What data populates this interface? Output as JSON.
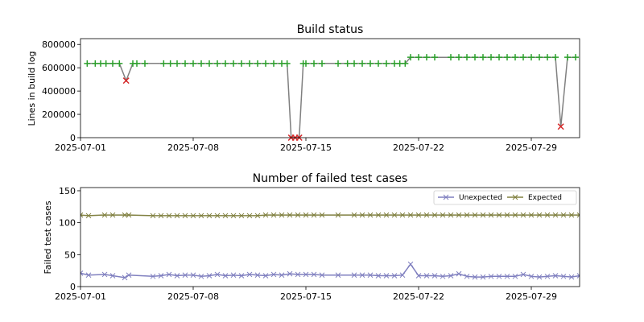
{
  "chart_data": [
    {
      "type": "line",
      "title": "Build status",
      "xlabel": "",
      "ylabel": "Lines in build log",
      "xlim": [
        "2025-07-01",
        "2025-08-01"
      ],
      "ylim": [
        0,
        850000
      ],
      "xticks": [
        "2025-07-01",
        "2025-07-08",
        "2025-07-15",
        "2025-07-22",
        "2025-07-29"
      ],
      "yticks": [
        0,
        200000,
        400000,
        600000,
        800000
      ],
      "ytick_labels": [
        "0",
        "200000",
        "400000",
        "600000",
        "800000"
      ],
      "grid": false,
      "colors": {
        "line": "#808080",
        "pass": "#2ca02c",
        "fail": "#d62728"
      },
      "series": [
        {
          "x": [
            "2025-07-01T10:00",
            "2025-07-01T22:00",
            "2025-07-02T06:00",
            "2025-07-02T14:00",
            "2025-07-03T00:00",
            "2025-07-03T10:00",
            "2025-07-03T20:00",
            "2025-07-04T06:00",
            "2025-07-04T12:00",
            "2025-07-05T00:00",
            "2025-07-06T04:00",
            "2025-07-06T14:00",
            "2025-07-07T00:00",
            "2025-07-07T12:00",
            "2025-07-08T00:00",
            "2025-07-08T12:00",
            "2025-07-09T00:00",
            "2025-07-09T12:00",
            "2025-07-10T00:00",
            "2025-07-10T12:00",
            "2025-07-11T00:00",
            "2025-07-11T12:00",
            "2025-07-12T00:00",
            "2025-07-12T12:00",
            "2025-07-13T00:00",
            "2025-07-13T12:00",
            "2025-07-13T20:00",
            "2025-07-14T02:00",
            "2025-07-14T08:00",
            "2025-07-14T14:00",
            "2025-07-14T20:00",
            "2025-07-15T00:00",
            "2025-07-15T12:00",
            "2025-07-16T00:00",
            "2025-07-17T00:00",
            "2025-07-17T14:00",
            "2025-07-18T00:00",
            "2025-07-18T12:00",
            "2025-07-19T00:00",
            "2025-07-19T12:00",
            "2025-07-20T00:00",
            "2025-07-20T12:00",
            "2025-07-20T20:00",
            "2025-07-21T04:00",
            "2025-07-21T12:00",
            "2025-07-22T00:00",
            "2025-07-22T12:00",
            "2025-07-23T00:00",
            "2025-07-24T00:00",
            "2025-07-24T12:00",
            "2025-07-25T00:00",
            "2025-07-25T12:00",
            "2025-07-26T00:00",
            "2025-07-26T12:00",
            "2025-07-27T00:00",
            "2025-07-27T12:00",
            "2025-07-28T00:00",
            "2025-07-28T12:00",
            "2025-07-29T00:00",
            "2025-07-29T12:00",
            "2025-07-30T00:00",
            "2025-07-30T12:00",
            "2025-07-30T20:00",
            "2025-07-31T06:00",
            "2025-07-31T18:00"
          ],
          "y": [
            637000,
            637000,
            637000,
            637000,
            637000,
            637000,
            490000,
            637000,
            637000,
            637000,
            637000,
            637000,
            637000,
            637000,
            637000,
            637000,
            637000,
            637000,
            637000,
            637000,
            637000,
            637000,
            637000,
            637000,
            637000,
            637000,
            637000,
            0,
            0,
            0,
            637000,
            637000,
            637000,
            637000,
            637000,
            637000,
            637000,
            637000,
            637000,
            637000,
            637000,
            637000,
            637000,
            637000,
            690000,
            690000,
            690000,
            690000,
            690000,
            690000,
            690000,
            690000,
            690000,
            690000,
            690000,
            690000,
            690000,
            690000,
            690000,
            690000,
            690000,
            690000,
            95000,
            690000,
            690000
          ],
          "status": [
            "pass",
            "pass",
            "pass",
            "pass",
            "pass",
            "pass",
            "fail",
            "pass",
            "pass",
            "pass",
            "pass",
            "pass",
            "pass",
            "pass",
            "pass",
            "pass",
            "pass",
            "pass",
            "pass",
            "pass",
            "pass",
            "pass",
            "pass",
            "pass",
            "pass",
            "pass",
            "pass",
            "fail",
            "fail",
            "fail",
            "pass",
            "pass",
            "pass",
            "pass",
            "pass",
            "pass",
            "pass",
            "pass",
            "pass",
            "pass",
            "pass",
            "pass",
            "pass",
            "pass",
            "pass",
            "pass",
            "pass",
            "pass",
            "pass",
            "pass",
            "pass",
            "pass",
            "pass",
            "pass",
            "pass",
            "pass",
            "pass",
            "pass",
            "pass",
            "pass",
            "pass",
            "pass",
            "fail",
            "pass",
            "pass"
          ]
        }
      ]
    },
    {
      "type": "line",
      "title": "Number of failed test cases",
      "xlabel": "",
      "ylabel": "Failed test cases",
      "xlim": [
        "2025-07-01",
        "2025-08-01"
      ],
      "ylim": [
        0,
        155
      ],
      "xticks": [
        "2025-07-01",
        "2025-07-08",
        "2025-07-15",
        "2025-07-22",
        "2025-07-29"
      ],
      "yticks": [
        0,
        50,
        100,
        150
      ],
      "ytick_labels": [
        "0",
        "50",
        "100",
        "150"
      ],
      "grid": false,
      "legend": "top-right",
      "series": [
        {
          "name": "Unexpected",
          "color": "#7f7fbf",
          "x": [
            "2025-07-01T00:00",
            "2025-07-01T12:00",
            "2025-07-02T12:00",
            "2025-07-03T00:00",
            "2025-07-03T18:00",
            "2025-07-04T00:00",
            "2025-07-05T12:00",
            "2025-07-06T00:00",
            "2025-07-06T12:00",
            "2025-07-07T00:00",
            "2025-07-07T12:00",
            "2025-07-08T00:00",
            "2025-07-08T12:00",
            "2025-07-09T00:00",
            "2025-07-09T12:00",
            "2025-07-10T00:00",
            "2025-07-10T12:00",
            "2025-07-11T00:00",
            "2025-07-11T12:00",
            "2025-07-12T00:00",
            "2025-07-12T12:00",
            "2025-07-13T00:00",
            "2025-07-13T12:00",
            "2025-07-14T00:00",
            "2025-07-14T12:00",
            "2025-07-15T00:00",
            "2025-07-15T12:00",
            "2025-07-16T00:00",
            "2025-07-17T00:00",
            "2025-07-18T00:00",
            "2025-07-18T12:00",
            "2025-07-19T00:00",
            "2025-07-19T12:00",
            "2025-07-20T00:00",
            "2025-07-20T12:00",
            "2025-07-21T00:00",
            "2025-07-21T12:00",
            "2025-07-22T00:00",
            "2025-07-22T12:00",
            "2025-07-23T00:00",
            "2025-07-23T12:00",
            "2025-07-24T00:00",
            "2025-07-24T12:00",
            "2025-07-25T00:00",
            "2025-07-25T12:00",
            "2025-07-26T00:00",
            "2025-07-26T12:00",
            "2025-07-27T00:00",
            "2025-07-27T12:00",
            "2025-07-28T00:00",
            "2025-07-28T12:00",
            "2025-07-29T00:00",
            "2025-07-29T12:00",
            "2025-07-30T00:00",
            "2025-07-30T12:00",
            "2025-07-31T00:00",
            "2025-07-31T12:00",
            "2025-08-01T00:00"
          ],
          "y": [
            21,
            18,
            19,
            17,
            14,
            18,
            16,
            17,
            19,
            17,
            18,
            18,
            16,
            17,
            19,
            17,
            18,
            17,
            19,
            18,
            17,
            19,
            18,
            20,
            19,
            19,
            19,
            18,
            18,
            18,
            18,
            18,
            17,
            17,
            17,
            18,
            35,
            17,
            17,
            17,
            16,
            17,
            20,
            16,
            15,
            15,
            16,
            16,
            16,
            16,
            19,
            16,
            15,
            16,
            17,
            16,
            15,
            17
          ],
          "marker": "x"
        },
        {
          "name": "Expected",
          "color": "#808040",
          "x": [
            "2025-07-01T00:00",
            "2025-07-01T12:00",
            "2025-07-02T12:00",
            "2025-07-03T00:00",
            "2025-07-03T18:00",
            "2025-07-04T00:00",
            "2025-07-05T12:00",
            "2025-07-06T00:00",
            "2025-07-06T12:00",
            "2025-07-07T00:00",
            "2025-07-07T12:00",
            "2025-07-08T00:00",
            "2025-07-08T12:00",
            "2025-07-09T00:00",
            "2025-07-09T12:00",
            "2025-07-10T00:00",
            "2025-07-10T12:00",
            "2025-07-11T00:00",
            "2025-07-11T12:00",
            "2025-07-12T00:00",
            "2025-07-12T12:00",
            "2025-07-13T00:00",
            "2025-07-13T12:00",
            "2025-07-14T00:00",
            "2025-07-14T12:00",
            "2025-07-15T00:00",
            "2025-07-15T12:00",
            "2025-07-16T00:00",
            "2025-07-17T00:00",
            "2025-07-18T00:00",
            "2025-07-18T12:00",
            "2025-07-19T00:00",
            "2025-07-19T12:00",
            "2025-07-20T00:00",
            "2025-07-20T12:00",
            "2025-07-21T00:00",
            "2025-07-21T12:00",
            "2025-07-22T00:00",
            "2025-07-22T12:00",
            "2025-07-23T00:00",
            "2025-07-23T12:00",
            "2025-07-24T00:00",
            "2025-07-24T12:00",
            "2025-07-25T00:00",
            "2025-07-25T12:00",
            "2025-07-26T00:00",
            "2025-07-26T12:00",
            "2025-07-27T00:00",
            "2025-07-27T12:00",
            "2025-07-28T00:00",
            "2025-07-28T12:00",
            "2025-07-29T00:00",
            "2025-07-29T12:00",
            "2025-07-30T00:00",
            "2025-07-30T12:00",
            "2025-07-31T00:00",
            "2025-07-31T12:00",
            "2025-08-01T00:00"
          ],
          "y": [
            112,
            111,
            112,
            112,
            112,
            112,
            111,
            111,
            111,
            111,
            111,
            111,
            111,
            111,
            111,
            111,
            111,
            111,
            111,
            111,
            112,
            112,
            112,
            112,
            112,
            112,
            112,
            112,
            112,
            112,
            112,
            112,
            112,
            112,
            112,
            112,
            112,
            112,
            112,
            112,
            112,
            112,
            112,
            112,
            112,
            112,
            112,
            112,
            112,
            112,
            112,
            112,
            112,
            112,
            112,
            112,
            112,
            112
          ],
          "marker": "x"
        }
      ]
    }
  ]
}
